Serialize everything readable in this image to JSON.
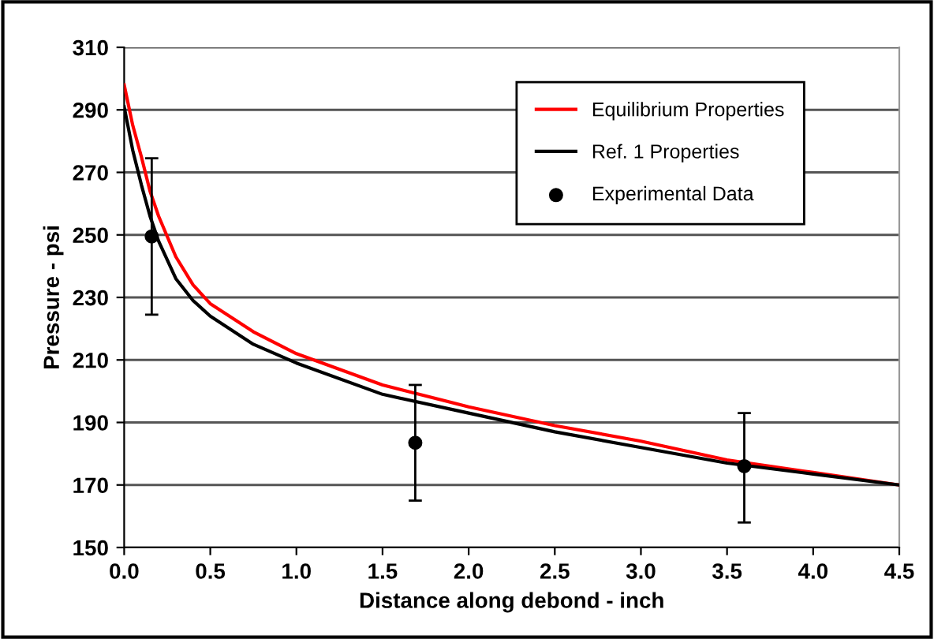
{
  "chart_data": {
    "type": "line",
    "xlabel": "Distance along debond - inch",
    "ylabel": "Pressure - psi",
    "xlim": [
      0,
      4.5
    ],
    "xticks": [
      {
        "value": 0,
        "label": "0.0"
      },
      0.5,
      {
        "value": 1,
        "label": "1.0"
      },
      1.5,
      {
        "value": 2,
        "label": "2.0"
      },
      2.5,
      {
        "value": 3,
        "label": "3.0"
      },
      3.5,
      {
        "value": 4,
        "label": "4.0"
      },
      4.5
    ],
    "ylim": [
      150,
      310
    ],
    "yticks": [
      150,
      170,
      190,
      210,
      230,
      250,
      270,
      290,
      310
    ],
    "grid": "y",
    "legend": "top right",
    "series": [
      {
        "name": "Equilibrium Properties",
        "color": "#ff0000",
        "marker": "none",
        "x": [
          0,
          0.05,
          0.1,
          0.15,
          0.2,
          0.3,
          0.4,
          0.5,
          0.75,
          1.0,
          1.5,
          2.0,
          2.5,
          3.0,
          3.5,
          4.0,
          4.5
        ],
        "values": [
          298,
          285,
          275,
          264,
          256,
          243,
          234,
          228,
          219,
          212,
          202,
          195,
          189,
          184,
          178,
          174,
          170
        ]
      },
      {
        "name": "Ref. 1 Properties",
        "color": "#000000",
        "marker": "none",
        "x": [
          0,
          0.05,
          0.1,
          0.15,
          0.2,
          0.3,
          0.4,
          0.5,
          0.75,
          1.0,
          1.5,
          2.0,
          2.5,
          3.0,
          3.5,
          4.0,
          4.5
        ],
        "values": [
          291,
          277,
          266,
          256,
          248,
          236,
          229,
          224,
          215,
          209,
          199,
          193,
          187,
          182,
          177,
          173.5,
          170
        ]
      },
      {
        "name": "Experimental Data",
        "type": "scatter",
        "color": "#000000",
        "marker": "circle",
        "x": [
          0.16,
          1.69,
          3.6
        ],
        "values": [
          249.5,
          183.5,
          176
        ],
        "errors": [
          [
            224.5,
            274.5
          ],
          [
            165,
            202
          ],
          [
            158,
            193
          ]
        ]
      }
    ]
  }
}
